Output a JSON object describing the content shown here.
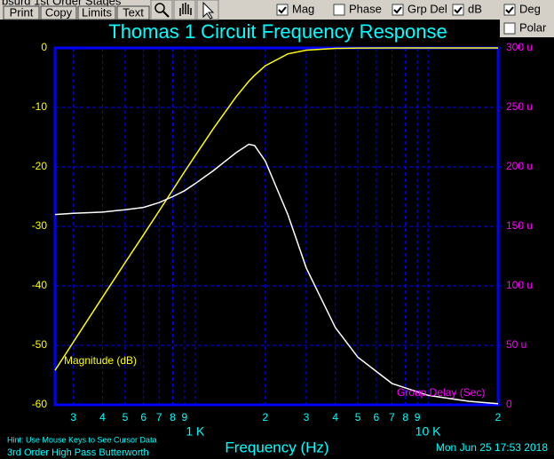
{
  "toolbar": {
    "tab": "bsurd 1st Order Stages",
    "buttons": [
      "Print",
      "Copy",
      "Limits",
      "Text"
    ],
    "checkboxes": [
      {
        "label": "Mag",
        "checked": true
      },
      {
        "label": "Phase",
        "checked": false
      },
      {
        "label": "Grp Del",
        "checked": true
      },
      {
        "label": "dB",
        "checked": true
      },
      {
        "label": "Deg",
        "checked": true
      },
      {
        "label": "Polar",
        "checked": false
      }
    ]
  },
  "chart_data": {
    "type": "line",
    "title": "Thomas 1 Circuit Frequency Response",
    "x_label": "Frequency (Hz)",
    "log_x": true,
    "grid": true,
    "x": [
      250,
      300,
      400,
      500,
      600,
      700,
      800,
      900,
      1000,
      1200,
      1500,
      1700,
      1800,
      2000,
      2500,
      3000,
      4000,
      5000,
      7000,
      10000,
      15000,
      20000
    ],
    "series": [
      {
        "name": "Magnitude (dB)",
        "color": "#ffff00",
        "values": [
          -54.2,
          -49.4,
          -41.9,
          -36.1,
          -31.4,
          -27.4,
          -23.9,
          -20.8,
          -18.1,
          -13.5,
          -8.2,
          -5.6,
          -4.6,
          -3.0,
          -1.0,
          -0.37,
          -0.07,
          -0.02,
          0,
          0,
          0,
          0
        ]
      },
      {
        "name": "Group Delay (Sec)",
        "color": "#ffffff",
        "axis": "y2",
        "values": [
          160,
          161,
          162,
          164,
          166,
          170,
          175,
          180,
          186,
          197,
          212,
          219,
          218,
          205,
          160,
          115,
          65,
          40,
          18,
          8,
          3,
          1
        ]
      }
    ],
    "xlim": [
      250,
      20000
    ],
    "xticks": [
      {
        "value": 300,
        "label": "3"
      },
      {
        "value": 400,
        "label": "4"
      },
      {
        "value": 500,
        "label": "5"
      },
      {
        "value": 600,
        "label": "6"
      },
      {
        "value": 700,
        "label": "7"
      },
      {
        "value": 800,
        "label": "8"
      },
      {
        "value": 900,
        "label": "9"
      },
      {
        "value": 1000,
        "label": "1 K"
      },
      {
        "value": 2000,
        "label": "2"
      },
      {
        "value": 3000,
        "label": "3"
      },
      {
        "value": 4000,
        "label": "4"
      },
      {
        "value": 5000,
        "label": "5"
      },
      {
        "value": 6000,
        "label": "6"
      },
      {
        "value": 7000,
        "label": "7"
      },
      {
        "value": 8000,
        "label": "8"
      },
      {
        "value": 9000,
        "label": "9"
      },
      {
        "value": 10000,
        "label": "10 K"
      },
      {
        "value": 20000,
        "label": "2"
      }
    ],
    "ylim": [
      -60,
      0
    ],
    "yticks": [
      -60,
      -50,
      -40,
      -30,
      -20,
      -10,
      0
    ],
    "y2lim": [
      0,
      300
    ],
    "y2ticks": [
      0,
      {
        "value": 50,
        "label": "50 u"
      },
      {
        "value": 100,
        "label": "100 u"
      },
      {
        "value": 150,
        "label": "150 u"
      },
      {
        "value": 200,
        "label": "200 u"
      },
      {
        "value": 250,
        "label": "250 u"
      },
      {
        "value": 300,
        "label": "300 u"
      }
    ],
    "hint": "Hint: Use Mouse Keys to See Cursor Data",
    "description": "3rd Order High Pass Butterworth",
    "timestamp": "Mon Jun 25 17:53 2018"
  }
}
